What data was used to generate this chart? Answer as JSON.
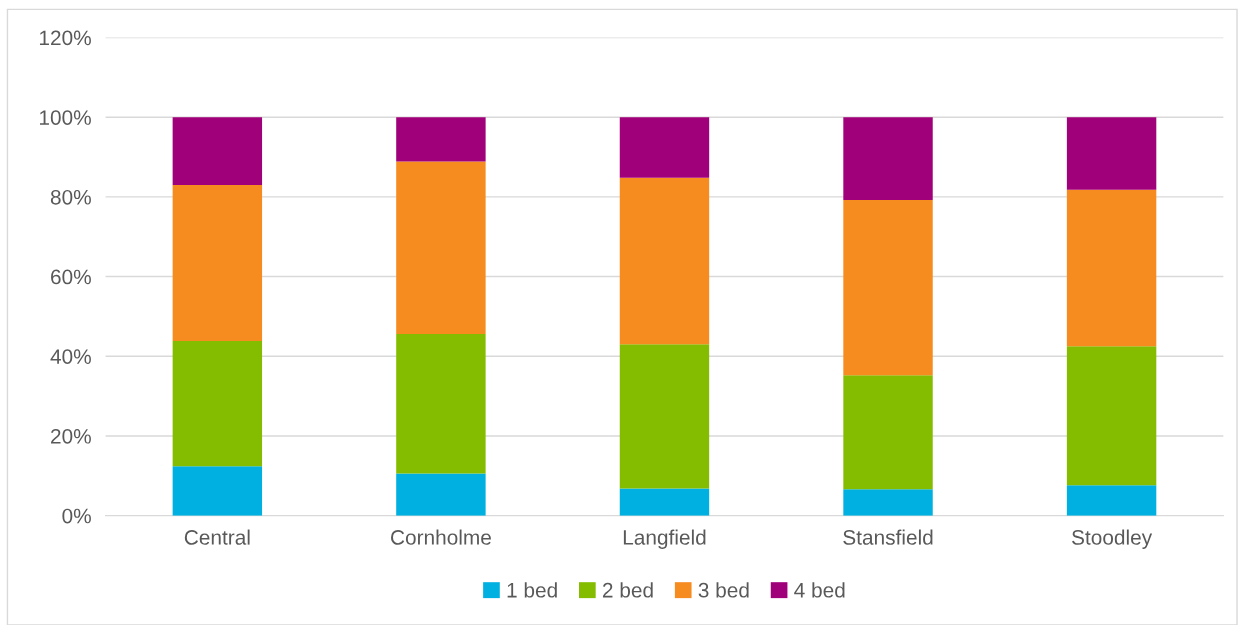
{
  "chart_data": {
    "type": "bar",
    "stacked": true,
    "categories": [
      "Central",
      "Cornholme",
      "Langfield",
      "Stansfield",
      "Stoodley"
    ],
    "series": [
      {
        "name": "1 bed",
        "color": "#00b0e0",
        "values": [
          12.4,
          10.6,
          6.8,
          6.6,
          7.6
        ]
      },
      {
        "name": "2 bed",
        "color": "#84bd00",
        "values": [
          31.4,
          35.0,
          36.2,
          28.6,
          34.9
        ]
      },
      {
        "name": "3 bed",
        "color": "#f68b1f",
        "values": [
          39.2,
          43.3,
          41.8,
          44.0,
          39.3
        ]
      },
      {
        "name": "4 bed",
        "color": "#a0007a",
        "values": [
          17.0,
          11.1,
          15.2,
          20.8,
          18.2
        ]
      }
    ],
    "ylim": [
      0,
      120
    ],
    "yticks": [
      {
        "value": 0,
        "label": "0%"
      },
      {
        "value": 20,
        "label": "20%"
      },
      {
        "value": 40,
        "label": "40%"
      },
      {
        "value": 60,
        "label": "60%"
      },
      {
        "value": 80,
        "label": "80%"
      },
      {
        "value": 100,
        "label": "100%"
      },
      {
        "value": 120,
        "label": "120%"
      }
    ],
    "grid": "y",
    "legend": "bottom"
  }
}
